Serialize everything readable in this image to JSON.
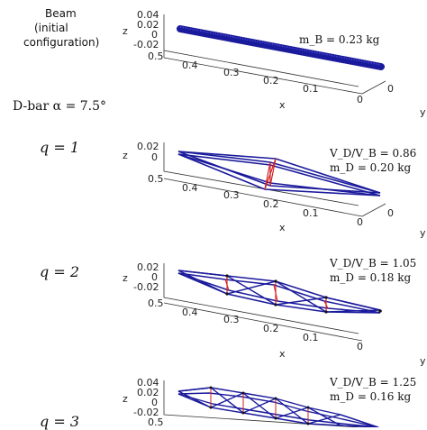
{
  "row_labels": {
    "beam_title": "Beam",
    "beam_sub1": "(initial",
    "beam_sub2": "configuration)",
    "dbar": "D-bar  α = 7.5°",
    "q1": "q = 1",
    "q2": "q = 2",
    "q3": "q = 3"
  },
  "axes": {
    "z_label": "z",
    "x_label": "x",
    "y_label": "y"
  },
  "panels": [
    {
      "id": "beam",
      "z_ticks": [
        "0.04",
        "0.02",
        "0",
        "-0.02"
      ],
      "x_ticks": [
        "0.5",
        "0.4",
        "0.3",
        "0.2",
        "0.1",
        "0"
      ],
      "y_tick": "0",
      "annotations": [
        "m_B = 0.23 kg"
      ]
    },
    {
      "id": "q1",
      "z_ticks": [
        "0.02",
        "0"
      ],
      "x_ticks": [
        "0.5",
        "0.4",
        "0.3",
        "0.2",
        "0.1",
        "0"
      ],
      "y_tick": "0",
      "annotations": [
        "V_D/V_B = 0.86",
        "m_D = 0.20 kg"
      ]
    },
    {
      "id": "q2",
      "z_ticks": [
        "0.02",
        "0",
        "-0.02"
      ],
      "x_ticks": [
        "0.5",
        "0.4",
        "0.3",
        "0.2",
        "0.1",
        "0"
      ],
      "y_tick": "0",
      "annotations": [
        "V_D/V_B = 1.05",
        "m_D = 0.18 kg"
      ]
    },
    {
      "id": "q3",
      "z_ticks": [
        "0.04",
        "0.02",
        "0",
        "-0.02"
      ],
      "x_ticks": [
        "0.5"
      ],
      "y_tick": "",
      "annotations": [
        "V_D/V_B = 1.25",
        "m_D = 0.16 kg"
      ]
    }
  ],
  "colors": {
    "bar": "#1a1a9c",
    "string": "#d42020",
    "axis": "#333333"
  }
}
